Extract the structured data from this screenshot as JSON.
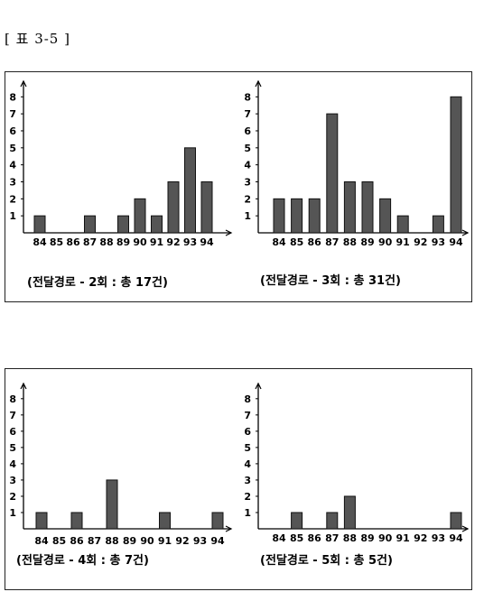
{
  "table_label": "[ 표 3-5 ]",
  "colors": {
    "bar_fill": "#555555",
    "bar_stroke": "#111111",
    "axis": "#000000"
  },
  "chart_data": [
    {
      "type": "bar",
      "caption": "(전달경로 - 2회 : 총 17건)",
      "categories": [
        "84",
        "85",
        "86",
        "87",
        "88",
        "89",
        "90",
        "91",
        "92",
        "93",
        "94"
      ],
      "values": [
        1,
        0,
        0,
        1,
        0,
        1,
        2,
        1,
        3,
        5,
        3
      ],
      "yticks": [
        1,
        2,
        3,
        4,
        5,
        6,
        7,
        8
      ],
      "ylim": [
        0,
        8.6
      ],
      "grid": false
    },
    {
      "type": "bar",
      "caption": "(전달경로 - 3회 : 총 31건)",
      "categories": [
        "84",
        "85",
        "86",
        "87",
        "88",
        "89",
        "90",
        "91",
        "92",
        "93",
        "94"
      ],
      "values": [
        2,
        2,
        2,
        7,
        3,
        3,
        2,
        1,
        0,
        1,
        8
      ],
      "yticks": [
        1,
        2,
        3,
        4,
        5,
        6,
        7,
        8
      ],
      "ylim": [
        0,
        8.6
      ],
      "grid": false
    },
    {
      "type": "bar",
      "caption": "(전달경로 - 4회 : 총 7건)",
      "categories": [
        "84",
        "85",
        "86",
        "87",
        "88",
        "89",
        "90",
        "91",
        "92",
        "93",
        "94"
      ],
      "values": [
        1,
        0,
        1,
        0,
        3,
        0,
        0,
        1,
        0,
        0,
        1
      ],
      "yticks": [
        1,
        2,
        3,
        4,
        5,
        6,
        7,
        8
      ],
      "ylim": [
        0,
        8.6
      ],
      "grid": false
    },
    {
      "type": "bar",
      "caption": "(전달경로 - 5회 : 총 5건)",
      "categories": [
        "84",
        "85",
        "86",
        "87",
        "88",
        "89",
        "90",
        "91",
        "92",
        "93",
        "94"
      ],
      "values": [
        0,
        1,
        0,
        1,
        2,
        0,
        0,
        0,
        0,
        0,
        1
      ],
      "yticks": [
        1,
        2,
        3,
        4,
        5,
        6,
        7,
        8
      ],
      "ylim": [
        0,
        8.6
      ],
      "grid": false
    }
  ]
}
